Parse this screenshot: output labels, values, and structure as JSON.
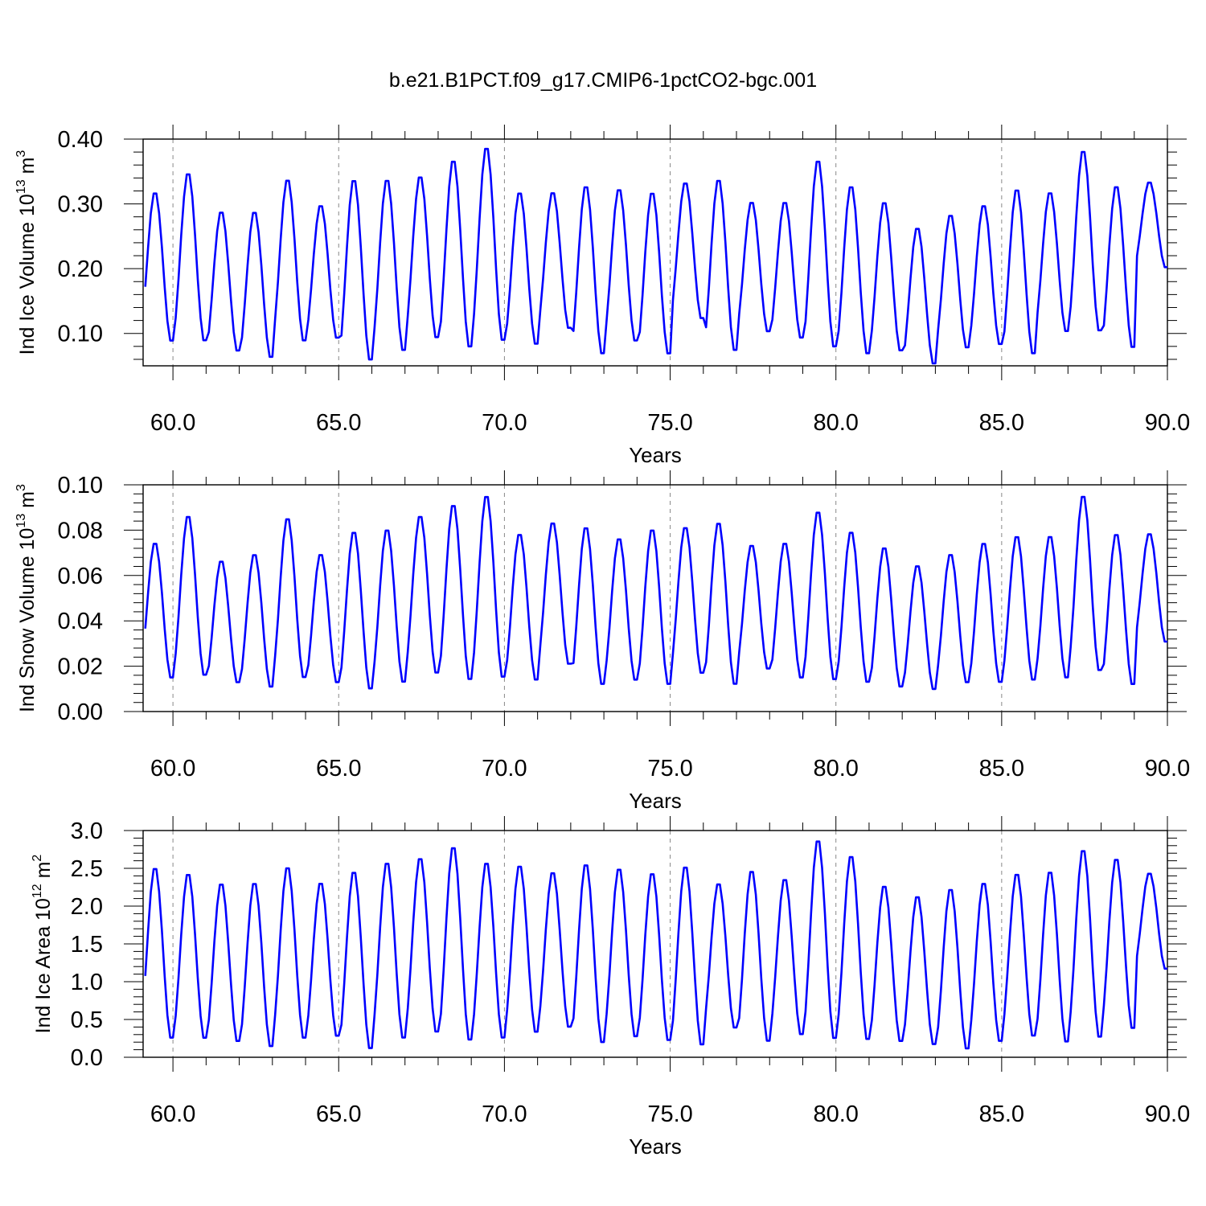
{
  "title": "b.e21.B1PCT.f09_g17.CMIP6-1pctCO2-bgc.001",
  "colors": {
    "series": "#0000ff",
    "axis": "#000000",
    "grid": "#888888"
  },
  "chart_data": [
    {
      "type": "line",
      "ylabel": {
        "main": "Ind Ice Volume 10",
        "exp": "13",
        "unit": " m",
        "unit_exp": "3"
      },
      "xlabel": "Years",
      "xlim": [
        59.1,
        90.0
      ],
      "ylim": [
        0.05,
        0.4
      ],
      "yticks": [
        0.1,
        0.2,
        0.3,
        0.4
      ],
      "ytick_labels": [
        "0.10",
        "0.20",
        "0.30",
        "0.40"
      ],
      "xticks": [
        60,
        65,
        70,
        75,
        80,
        85,
        90
      ],
      "xtick_labels": [
        "60.0",
        "65.0",
        "70.0",
        "75.0",
        "80.0",
        "85.0",
        "90.0"
      ],
      "grid": "dashed vertical lines at major x ticks",
      "start_year": 59,
      "series": [
        {
          "color": "#0000ff",
          "annual_max": [
            0.32,
            0.35,
            0.29,
            0.29,
            0.34,
            0.3,
            0.34,
            0.34,
            0.345,
            0.37,
            0.39,
            0.32,
            0.32,
            0.33,
            0.325,
            0.32,
            0.335,
            0.34,
            0.305,
            0.305,
            0.37,
            0.33,
            0.305,
            0.265,
            0.285,
            0.3,
            0.325,
            0.32,
            0.385,
            0.33,
            0.335
          ],
          "annual_min": [
            0.085,
            0.085,
            0.07,
            0.06,
            0.085,
            0.09,
            0.055,
            0.07,
            0.09,
            0.075,
            0.085,
            0.08,
            0.105,
            0.065,
            0.085,
            0.065,
            0.12,
            0.07,
            0.1,
            0.09,
            0.075,
            0.065,
            0.07,
            0.05,
            0.075,
            0.08,
            0.065,
            0.1,
            0.1,
            0.075,
            0.2
          ]
        }
      ]
    },
    {
      "type": "line",
      "ylabel": {
        "main": "Ind Snow Volume 10",
        "exp": "13",
        "unit": " m",
        "unit_exp": "3"
      },
      "xlabel": "Years",
      "xlim": [
        59.1,
        90.0
      ],
      "ylim": [
        0.0,
        0.1
      ],
      "yticks": [
        0.0,
        0.02,
        0.04,
        0.06,
        0.08,
        0.1
      ],
      "ytick_labels": [
        "0.00",
        "0.02",
        "0.04",
        "0.06",
        "0.08",
        "0.10"
      ],
      "xticks": [
        60,
        65,
        70,
        75,
        80,
        85,
        90
      ],
      "xtick_labels": [
        "60.0",
        "65.0",
        "70.0",
        "75.0",
        "80.0",
        "85.0",
        "90.0"
      ],
      "grid": "dashed vertical lines at major x ticks",
      "start_year": 59,
      "series": [
        {
          "color": "#0000ff",
          "annual_max": [
            0.075,
            0.087,
            0.067,
            0.07,
            0.086,
            0.07,
            0.08,
            0.081,
            0.087,
            0.092,
            0.096,
            0.079,
            0.084,
            0.082,
            0.077,
            0.081,
            0.082,
            0.084,
            0.074,
            0.075,
            0.089,
            0.08,
            0.073,
            0.065,
            0.07,
            0.075,
            0.078,
            0.078,
            0.096,
            0.079,
            0.079
          ],
          "annual_min": [
            0.014,
            0.015,
            0.012,
            0.01,
            0.014,
            0.012,
            0.009,
            0.012,
            0.016,
            0.013,
            0.014,
            0.013,
            0.02,
            0.011,
            0.013,
            0.011,
            0.016,
            0.011,
            0.018,
            0.014,
            0.013,
            0.012,
            0.01,
            0.009,
            0.012,
            0.012,
            0.013,
            0.014,
            0.017,
            0.011,
            0.03
          ]
        }
      ]
    },
    {
      "type": "line",
      "ylabel": {
        "main": "Ind Ice Area 10",
        "exp": "12",
        "unit": " m",
        "unit_exp": "2"
      },
      "xlabel": "Years",
      "xlim": [
        59.1,
        90.0
      ],
      "ylim": [
        0.0,
        3.0
      ],
      "yticks": [
        0.0,
        0.5,
        1.0,
        1.5,
        2.0,
        2.5,
        3.0
      ],
      "ytick_labels": [
        "0.0",
        "0.5",
        "1.0",
        "1.5",
        "2.0",
        "2.5",
        "3.0"
      ],
      "xticks": [
        60,
        65,
        70,
        75,
        80,
        85,
        90
      ],
      "xtick_labels": [
        "60.0",
        "65.0",
        "70.0",
        "75.0",
        "80.0",
        "85.0",
        "90.0"
      ],
      "grid": "dashed vertical lines at major x ticks",
      "start_year": 59,
      "series": [
        {
          "color": "#0000ff",
          "annual_max": [
            2.53,
            2.45,
            2.32,
            2.33,
            2.54,
            2.33,
            2.48,
            2.6,
            2.66,
            2.81,
            2.6,
            2.56,
            2.47,
            2.58,
            2.52,
            2.46,
            2.55,
            2.32,
            2.49,
            2.38,
            2.9,
            2.69,
            2.29,
            2.15,
            2.25,
            2.33,
            2.45,
            2.48,
            2.77,
            2.65,
            2.45
          ],
          "annual_min": [
            0.22,
            0.22,
            0.18,
            0.11,
            0.22,
            0.25,
            0.08,
            0.22,
            0.3,
            0.19,
            0.22,
            0.3,
            0.37,
            0.16,
            0.24,
            0.19,
            0.13,
            0.36,
            0.18,
            0.27,
            0.21,
            0.2,
            0.18,
            0.14,
            0.08,
            0.18,
            0.25,
            0.17,
            0.23,
            0.35,
            1.15
          ]
        }
      ]
    }
  ]
}
